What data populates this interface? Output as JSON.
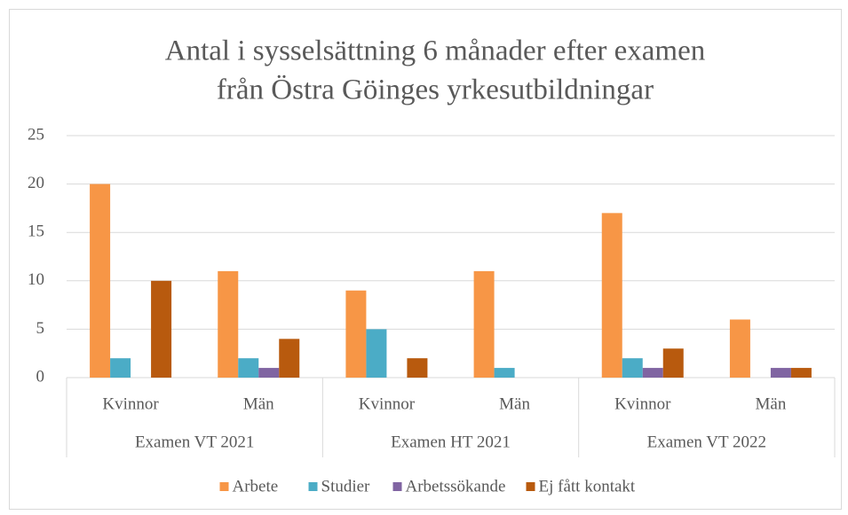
{
  "chart_data": {
    "type": "bar",
    "title": [
      "Antal i sysselsättning 6 månader efter examen",
      "från Östra Göinges yrkesutbildningar"
    ],
    "categories": [
      "Kvinnor",
      "Män",
      "Kvinnor",
      "Män",
      "Kvinnor",
      "Män"
    ],
    "groups": [
      "Examen VT 2021",
      "Examen HT 2021",
      "Examen VT 2022"
    ],
    "series": [
      {
        "name": "Arbete",
        "color": "#f79646",
        "values": [
          20,
          11,
          9,
          11,
          17,
          6
        ]
      },
      {
        "name": "Studier",
        "color": "#4bacc6",
        "values": [
          2,
          2,
          5,
          1,
          2,
          0
        ]
      },
      {
        "name": "Arbetssökande",
        "color": "#8064a2",
        "values": [
          0,
          1,
          0,
          0,
          1,
          1
        ]
      },
      {
        "name": "Ej fått kontakt",
        "color": "#b85a0e",
        "values": [
          10,
          4,
          2,
          0,
          3,
          1
        ]
      }
    ],
    "ylim": [
      0,
      25
    ],
    "yticks": [
      0,
      5,
      10,
      15,
      20,
      25
    ],
    "grid": true,
    "legend": "bottom"
  }
}
